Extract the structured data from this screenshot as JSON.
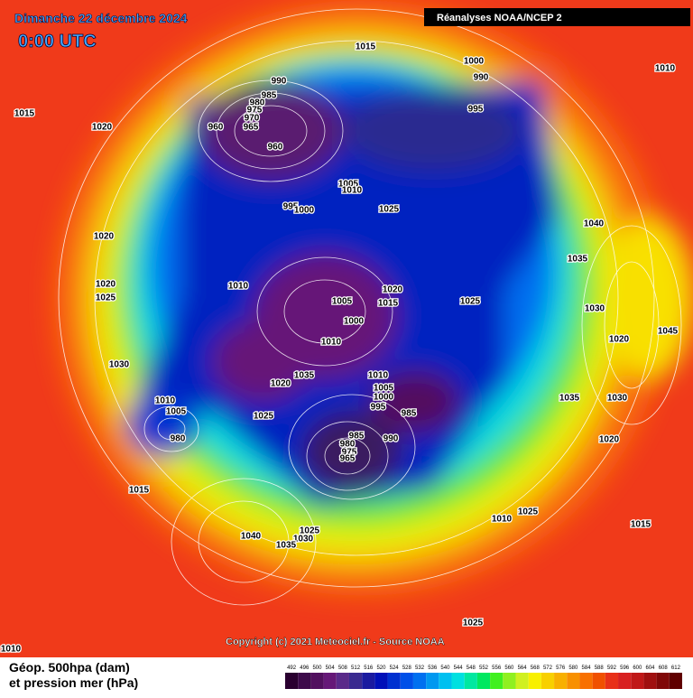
{
  "header": {
    "date": "Dimanche 22 décembre 2024",
    "time": "0:00 UTC",
    "source": "Réanalyses NOAA/NCEP 2"
  },
  "isobar_labels": [
    1015,
    1000,
    990,
    1010,
    1015,
    1020,
    990,
    985,
    980,
    975,
    970,
    965,
    960,
    960,
    995,
    1005,
    1010,
    995,
    1000,
    1025,
    1040,
    1020,
    1035,
    1020,
    1025,
    1010,
    1020,
    1005,
    1015,
    1025,
    1030,
    1000,
    1010,
    1030,
    1035,
    1010,
    1020,
    1005,
    1000,
    1035,
    1030,
    1010,
    1005,
    995,
    985,
    1025,
    990,
    980,
    1020,
    985,
    980,
    975,
    965,
    1015,
    1010,
    1025,
    1015,
    1025,
    1040,
    1030,
    1035,
    1025,
    1010,
    1020,
    1045
  ],
  "footer": {
    "copyright": "Copyright (c) 2021 Meteociel.fr - Source NOAA",
    "legend_title_1": "Géop. 500hpa (dam)",
    "legend_title_2": "et pression mer (hPa)"
  },
  "scale": {
    "labels": [
      492,
      496,
      500,
      504,
      508,
      512,
      516,
      520,
      524,
      528,
      532,
      536,
      540,
      544,
      548,
      552,
      556,
      560,
      564,
      568,
      572,
      576,
      580,
      584,
      588,
      592,
      596,
      600,
      604,
      608,
      612
    ],
    "colors": [
      "#2a0030",
      "#3d0a4a",
      "#52105f",
      "#661878",
      "#5a2a8a",
      "#3a2a90",
      "#1a1aa0",
      "#0010b8",
      "#0030d0",
      "#0050e8",
      "#0070f0",
      "#0098f0",
      "#00c0f0",
      "#00e0e0",
      "#00e8a0",
      "#00e860",
      "#40f020",
      "#90f020",
      "#d0f020",
      "#f8f000",
      "#f8d000",
      "#f8b000",
      "#f89000",
      "#f87000",
      "#f05000",
      "#e83018",
      "#d82020",
      "#c01818",
      "#a01010",
      "#800808",
      "#600000"
    ]
  }
}
